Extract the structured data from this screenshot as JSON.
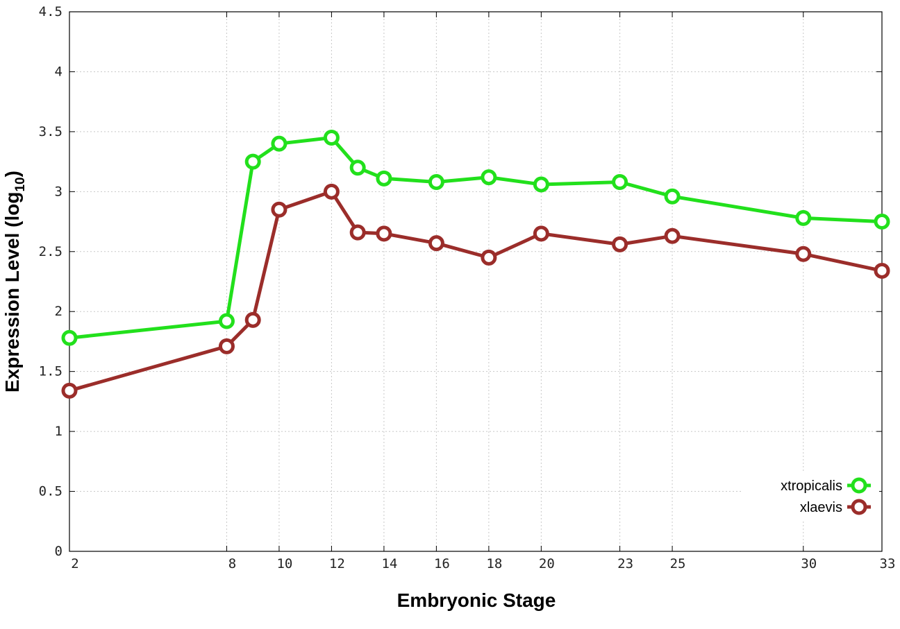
{
  "chart_data": {
    "type": "line",
    "xlabel": "Embryonic Stage",
    "ylabel": "Expression Level (log",
    "ylabel_sub": "10",
    "ylabel_close": ")",
    "x": [
      2,
      8,
      9,
      10,
      12,
      13,
      14,
      16,
      18,
      20,
      23,
      25,
      30,
      33
    ],
    "x_ticks": [
      2,
      8,
      10,
      12,
      14,
      16,
      18,
      20,
      23,
      25,
      30,
      33
    ],
    "x_tick_labels": [
      "2",
      "8",
      "10",
      "12",
      "14",
      "16",
      "18",
      "20",
      "23",
      "25",
      "30",
      "33"
    ],
    "xlim": [
      2,
      33
    ],
    "ylim": [
      0,
      4.5
    ],
    "y_ticks": [
      0,
      0.5,
      1,
      1.5,
      2,
      2.5,
      3,
      3.5,
      4,
      4.5
    ],
    "y_tick_labels": [
      "0",
      "0.5",
      "1",
      "1.5",
      "2",
      "2.5",
      "3",
      "3.5",
      "4",
      "4.5"
    ],
    "grid": true,
    "legend_position": "bottom-right",
    "series": [
      {
        "name": "xtropicalis",
        "color": "#22e01c",
        "values": [
          1.78,
          1.92,
          3.25,
          3.4,
          3.45,
          3.2,
          3.11,
          3.08,
          3.12,
          3.06,
          3.08,
          2.96,
          2.78,
          2.75
        ]
      },
      {
        "name": "xlaevis",
        "color": "#9b2d2a",
        "values": [
          1.34,
          1.71,
          1.93,
          2.85,
          3.0,
          2.66,
          2.65,
          2.57,
          2.45,
          2.65,
          2.56,
          2.63,
          2.48,
          2.34
        ]
      }
    ]
  }
}
